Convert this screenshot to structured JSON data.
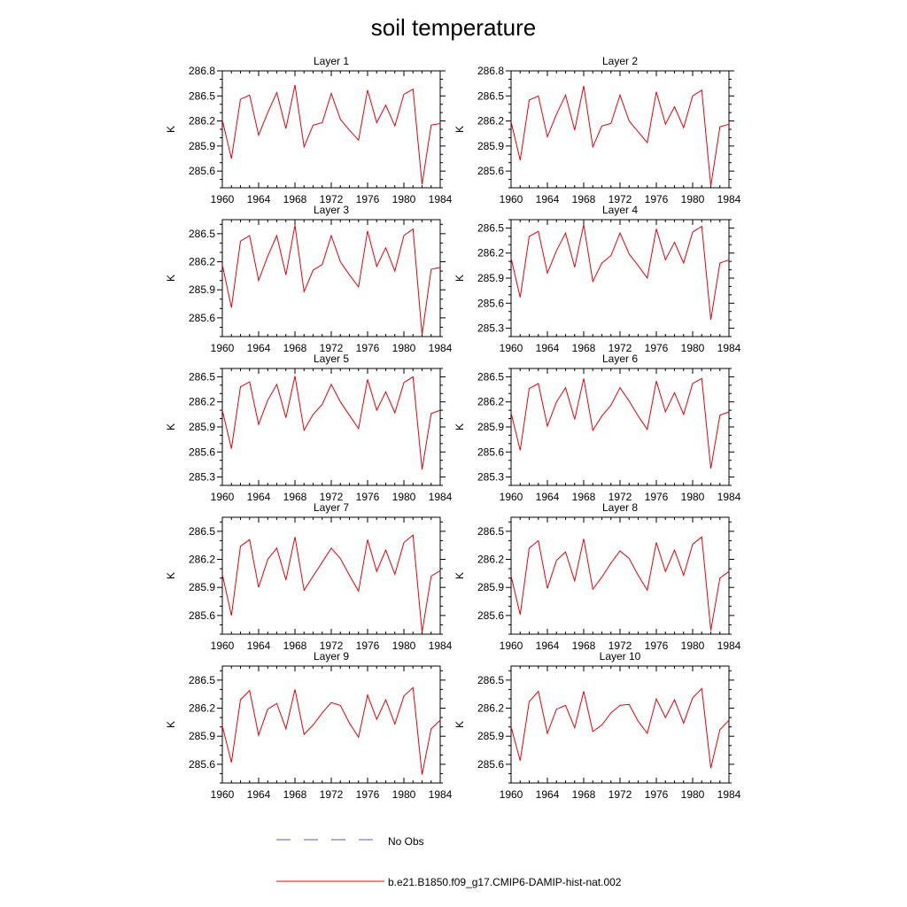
{
  "title": "soil temperature",
  "chart_data": [
    {
      "type": "line",
      "title": "Layer 1",
      "ylabel": "K",
      "xlim": [
        1960,
        1984
      ],
      "ylim": [
        285.4,
        286.8
      ],
      "xticks": [
        1960,
        1964,
        1968,
        1972,
        1976,
        1980,
        1984
      ],
      "yticks": [
        "285.6",
        "285.9",
        "286.2",
        "286.5",
        "286.8"
      ],
      "x": [
        1960,
        1961,
        1962,
        1963,
        1964,
        1965,
        1966,
        1967,
        1968,
        1969,
        1970,
        1971,
        1972,
        1973,
        1974,
        1975,
        1976,
        1977,
        1978,
        1979,
        1980,
        1981,
        1982,
        1983,
        1984
      ],
      "series": [
        {
          "name": "b.e21.B1850.f09_g17.CMIP6-DAMIP-hist-nat.002",
          "values": [
            286.21,
            285.75,
            286.46,
            286.51,
            286.03,
            286.3,
            286.54,
            286.11,
            286.63,
            285.89,
            286.15,
            286.18,
            286.53,
            286.22,
            286.09,
            285.97,
            286.57,
            286.18,
            286.39,
            286.14,
            286.52,
            286.58,
            285.44,
            286.15,
            286.17
          ]
        }
      ]
    },
    {
      "type": "line",
      "title": "Layer 2",
      "ylabel": "K",
      "xlim": [
        1960,
        1984
      ],
      "ylim": [
        285.4,
        286.8
      ],
      "xticks": [
        1960,
        1964,
        1968,
        1972,
        1976,
        1980,
        1984
      ],
      "yticks": [
        "285.6",
        "285.9",
        "286.2",
        "286.5",
        "286.8"
      ],
      "x": [
        1960,
        1961,
        1962,
        1963,
        1964,
        1965,
        1966,
        1967,
        1968,
        1969,
        1970,
        1971,
        1972,
        1973,
        1974,
        1975,
        1976,
        1977,
        1978,
        1979,
        1980,
        1981,
        1982,
        1983,
        1984
      ],
      "series": [
        {
          "name": "b.e21.B1850.f09_g17.CMIP6-DAMIP-hist-nat.002",
          "values": [
            286.19,
            285.73,
            286.45,
            286.5,
            286.01,
            286.28,
            286.51,
            286.09,
            286.62,
            285.89,
            286.14,
            286.17,
            286.51,
            286.2,
            286.07,
            285.94,
            286.55,
            286.16,
            286.37,
            286.12,
            286.5,
            286.57,
            285.42,
            286.13,
            286.16
          ]
        }
      ]
    },
    {
      "type": "line",
      "title": "Layer 3",
      "ylabel": "K",
      "xlim": [
        1960,
        1984
      ],
      "ylim": [
        285.4,
        286.65
      ],
      "xticks": [
        1960,
        1964,
        1968,
        1972,
        1976,
        1980,
        1984
      ],
      "yticks": [
        "285.6",
        "285.9",
        "286.2",
        "286.5"
      ],
      "x": [
        1960,
        1961,
        1962,
        1963,
        1964,
        1965,
        1966,
        1967,
        1968,
        1969,
        1970,
        1971,
        1972,
        1973,
        1974,
        1975,
        1976,
        1977,
        1978,
        1979,
        1980,
        1981,
        1982,
        1983,
        1984
      ],
      "series": [
        {
          "name": "b.e21.B1850.f09_g17.CMIP6-DAMIP-hist-nat.002",
          "values": [
            286.17,
            285.71,
            286.42,
            286.48,
            286.0,
            286.26,
            286.48,
            286.06,
            286.59,
            285.88,
            286.11,
            286.17,
            286.48,
            286.2,
            286.06,
            285.93,
            286.53,
            286.15,
            286.35,
            286.1,
            286.48,
            286.55,
            285.42,
            286.12,
            286.14
          ]
        }
      ]
    },
    {
      "type": "line",
      "title": "Layer 4",
      "ylabel": "K",
      "xlim": [
        1960,
        1984
      ],
      "ylim": [
        285.2,
        286.6
      ],
      "xticks": [
        1960,
        1964,
        1968,
        1972,
        1976,
        1980,
        1984
      ],
      "yticks": [
        "285.3",
        "285.6",
        "285.9",
        "286.2",
        "286.5"
      ],
      "x": [
        1960,
        1961,
        1962,
        1963,
        1964,
        1965,
        1966,
        1967,
        1968,
        1969,
        1970,
        1971,
        1972,
        1973,
        1974,
        1975,
        1976,
        1977,
        1978,
        1979,
        1980,
        1981,
        1982,
        1983,
        1984
      ],
      "series": [
        {
          "name": "b.e21.B1850.f09_g17.CMIP6-DAMIP-hist-nat.002",
          "values": [
            286.14,
            285.67,
            286.4,
            286.46,
            285.96,
            286.23,
            286.44,
            286.03,
            286.54,
            285.86,
            286.08,
            286.17,
            286.44,
            286.19,
            286.05,
            285.9,
            286.49,
            286.12,
            286.33,
            286.08,
            286.45,
            286.52,
            285.4,
            286.08,
            286.12
          ]
        }
      ]
    },
    {
      "type": "line",
      "title": "Layer 5",
      "ylabel": "K",
      "xlim": [
        1960,
        1984
      ],
      "ylim": [
        285.2,
        286.6
      ],
      "xticks": [
        1960,
        1964,
        1968,
        1972,
        1976,
        1980,
        1984
      ],
      "yticks": [
        "285.3",
        "285.6",
        "285.9",
        "286.2",
        "286.5"
      ],
      "x": [
        1960,
        1961,
        1962,
        1963,
        1964,
        1965,
        1966,
        1967,
        1968,
        1969,
        1970,
        1971,
        1972,
        1973,
        1974,
        1975,
        1976,
        1977,
        1978,
        1979,
        1980,
        1981,
        1982,
        1983,
        1984
      ],
      "series": [
        {
          "name": "b.e21.B1850.f09_g17.CMIP6-DAMIP-hist-nat.002",
          "values": [
            286.1,
            285.64,
            286.38,
            286.44,
            285.93,
            286.22,
            286.41,
            286.01,
            286.51,
            285.86,
            286.05,
            286.17,
            286.41,
            286.2,
            286.04,
            285.88,
            286.47,
            286.1,
            286.32,
            286.07,
            286.43,
            286.5,
            285.39,
            286.06,
            286.1
          ]
        }
      ]
    },
    {
      "type": "line",
      "title": "Layer 6",
      "ylabel": "K",
      "xlim": [
        1960,
        1984
      ],
      "ylim": [
        285.2,
        286.6
      ],
      "xticks": [
        1960,
        1964,
        1968,
        1972,
        1976,
        1980,
        1984
      ],
      "yticks": [
        "285.3",
        "285.6",
        "285.9",
        "286.2",
        "286.5"
      ],
      "x": [
        1960,
        1961,
        1962,
        1963,
        1964,
        1965,
        1966,
        1967,
        1968,
        1969,
        1970,
        1971,
        1972,
        1973,
        1974,
        1975,
        1976,
        1977,
        1978,
        1979,
        1980,
        1981,
        1982,
        1983,
        1984
      ],
      "series": [
        {
          "name": "b.e21.B1850.f09_g17.CMIP6-DAMIP-hist-nat.002",
          "values": [
            286.07,
            285.62,
            286.36,
            286.42,
            285.91,
            286.2,
            286.37,
            285.99,
            286.48,
            285.86,
            286.03,
            286.16,
            286.37,
            286.21,
            286.03,
            285.87,
            286.45,
            286.08,
            286.31,
            286.05,
            286.42,
            286.48,
            285.4,
            286.04,
            286.08
          ]
        }
      ]
    },
    {
      "type": "line",
      "title": "Layer 7",
      "ylabel": "K",
      "xlim": [
        1960,
        1984
      ],
      "ylim": [
        285.4,
        286.65
      ],
      "xticks": [
        1960,
        1964,
        1968,
        1972,
        1976,
        1980,
        1984
      ],
      "yticks": [
        "285.6",
        "285.9",
        "286.2",
        "286.5"
      ],
      "x": [
        1960,
        1961,
        1962,
        1963,
        1964,
        1965,
        1966,
        1967,
        1968,
        1969,
        1970,
        1971,
        1972,
        1973,
        1974,
        1975,
        1976,
        1977,
        1978,
        1979,
        1980,
        1981,
        1982,
        1983,
        1984
      ],
      "series": [
        {
          "name": "b.e21.B1850.f09_g17.CMIP6-DAMIP-hist-nat.002",
          "values": [
            286.04,
            285.6,
            286.34,
            286.41,
            285.9,
            286.2,
            286.32,
            285.98,
            286.44,
            285.87,
            286.02,
            286.17,
            286.32,
            286.21,
            286.03,
            285.86,
            286.41,
            286.07,
            286.3,
            286.04,
            286.38,
            286.46,
            285.42,
            286.02,
            286.08
          ]
        }
      ]
    },
    {
      "type": "line",
      "title": "Layer 8",
      "ylabel": "K",
      "xlim": [
        1960,
        1984
      ],
      "ylim": [
        285.4,
        286.65
      ],
      "xticks": [
        1960,
        1964,
        1968,
        1972,
        1976,
        1980,
        1984
      ],
      "yticks": [
        "285.6",
        "285.9",
        "286.2",
        "286.5"
      ],
      "x": [
        1960,
        1961,
        1962,
        1963,
        1964,
        1965,
        1966,
        1967,
        1968,
        1969,
        1970,
        1971,
        1972,
        1973,
        1974,
        1975,
        1976,
        1977,
        1978,
        1979,
        1980,
        1981,
        1982,
        1983,
        1984
      ],
      "series": [
        {
          "name": "b.e21.B1850.f09_g17.CMIP6-DAMIP-hist-nat.002",
          "values": [
            286.02,
            285.61,
            286.32,
            286.4,
            285.89,
            286.19,
            286.28,
            285.97,
            286.42,
            285.88,
            286.01,
            286.16,
            286.29,
            286.21,
            286.03,
            285.87,
            286.38,
            286.07,
            286.3,
            286.03,
            286.36,
            286.44,
            285.44,
            286.0,
            286.07
          ]
        }
      ]
    },
    {
      "type": "line",
      "title": "Layer 9",
      "ylabel": "K",
      "xlim": [
        1960,
        1984
      ],
      "ylim": [
        285.4,
        286.65
      ],
      "xticks": [
        1960,
        1964,
        1968,
        1972,
        1976,
        1980,
        1984
      ],
      "yticks": [
        "285.6",
        "285.9",
        "286.2",
        "286.5"
      ],
      "x": [
        1960,
        1961,
        1962,
        1963,
        1964,
        1965,
        1966,
        1967,
        1968,
        1969,
        1970,
        1971,
        1972,
        1973,
        1974,
        1975,
        1976,
        1977,
        1978,
        1979,
        1980,
        1981,
        1982,
        1983,
        1984
      ],
      "series": [
        {
          "name": "b.e21.B1850.f09_g17.CMIP6-DAMIP-hist-nat.002",
          "values": [
            286.01,
            285.62,
            286.29,
            286.39,
            285.91,
            286.19,
            286.25,
            285.98,
            286.4,
            285.92,
            286.02,
            286.15,
            286.26,
            286.23,
            286.04,
            285.89,
            286.34,
            286.08,
            286.29,
            286.03,
            286.33,
            286.42,
            285.49,
            285.98,
            286.07
          ]
        }
      ]
    },
    {
      "type": "line",
      "title": "Layer 10",
      "ylabel": "K",
      "xlim": [
        1960,
        1984
      ],
      "ylim": [
        285.4,
        286.65
      ],
      "xticks": [
        1960,
        1964,
        1968,
        1972,
        1976,
        1980,
        1984
      ],
      "yticks": [
        "285.6",
        "285.9",
        "286.2",
        "286.5"
      ],
      "x": [
        1960,
        1961,
        1962,
        1963,
        1964,
        1965,
        1966,
        1967,
        1968,
        1969,
        1970,
        1971,
        1972,
        1973,
        1974,
        1975,
        1976,
        1977,
        1978,
        1979,
        1980,
        1981,
        1982,
        1983,
        1984
      ],
      "series": [
        {
          "name": "b.e21.B1850.f09_g17.CMIP6-DAMIP-hist-nat.002",
          "values": [
            286.0,
            285.64,
            286.27,
            286.38,
            285.93,
            286.19,
            286.23,
            285.99,
            286.38,
            285.95,
            286.02,
            286.15,
            286.23,
            286.24,
            286.06,
            285.93,
            286.3,
            286.1,
            286.29,
            286.04,
            286.31,
            286.41,
            285.56,
            285.97,
            286.07
          ]
        }
      ]
    }
  ],
  "legend": [
    {
      "label": "No Obs",
      "color": "#5a5ab4",
      "style": "dashed"
    },
    {
      "label": "b.e21.B1850.f09_g17.CMIP6-DAMIP-hist-nat.002",
      "color": "#e6000a",
      "style": "solid"
    }
  ],
  "colors": {
    "line": "#e6000a",
    "axis": "#000000"
  }
}
